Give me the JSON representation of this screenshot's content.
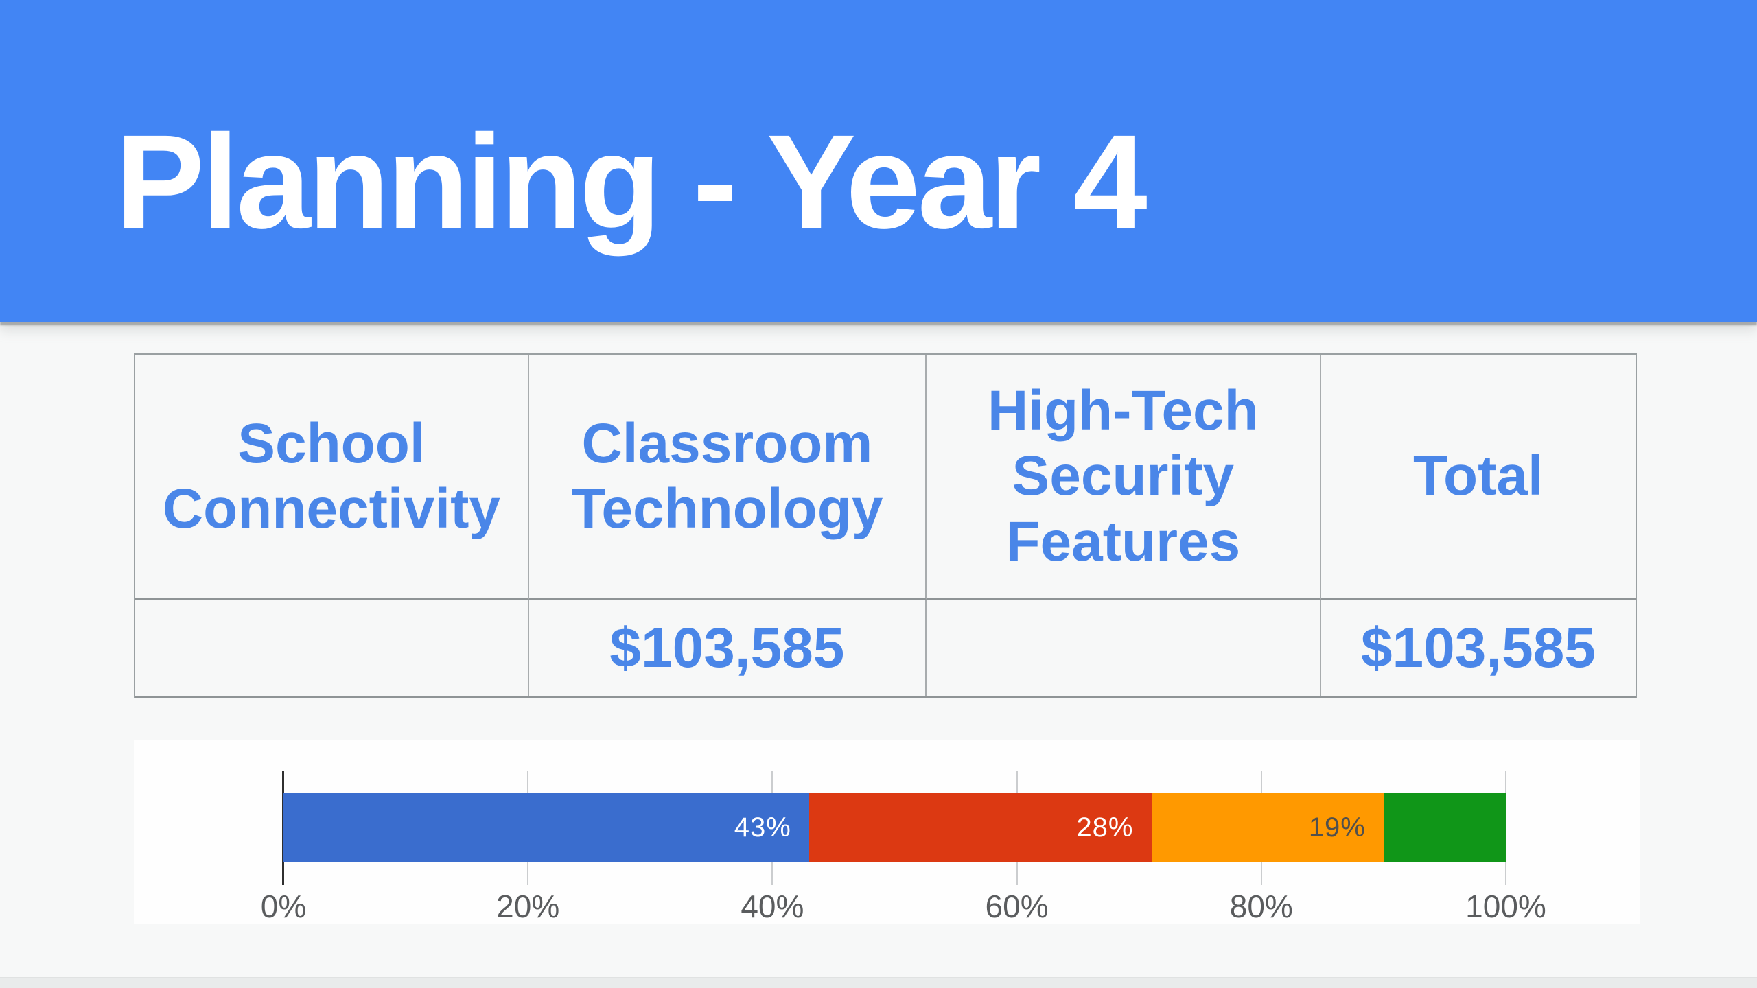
{
  "slide": {
    "title": "Planning - Year 4"
  },
  "table": {
    "columns": [
      "School Connectivity",
      "Classroom Technology",
      "High-Tech Security Features",
      "Total"
    ],
    "rows": [
      [
        "",
        "$103,585",
        "",
        "$103,585"
      ]
    ]
  },
  "chart_data": {
    "type": "bar",
    "orientation": "horizontal",
    "stacked": true,
    "title": "",
    "xlabel": "",
    "ylabel": "",
    "xlim": [
      0,
      100
    ],
    "x_ticks": [
      "0%",
      "20%",
      "40%",
      "60%",
      "80%",
      "100%"
    ],
    "grid": true,
    "legend": "none",
    "segments": [
      {
        "value": 43,
        "label": "43%",
        "color": "#3a6dce",
        "label_color": "#ffffff"
      },
      {
        "value": 28,
        "label": "28%",
        "color": "#dc3912",
        "label_color": "#ffffff"
      },
      {
        "value": 19,
        "label": "19%",
        "color": "#ff9900",
        "label_color": "#51504d"
      },
      {
        "value": 10,
        "label": "",
        "color": "#109618",
        "label_color": "#ffffff"
      }
    ]
  },
  "colors": {
    "banner": "#4285f4",
    "title_text": "#ffffff",
    "table_text": "#4a86e8",
    "background": "#f7f8f8",
    "panel": "#fefefe",
    "gridline": "#cbcdcf",
    "axis_line": "#2f2f2f",
    "axis_label": "#5a5c5e"
  }
}
